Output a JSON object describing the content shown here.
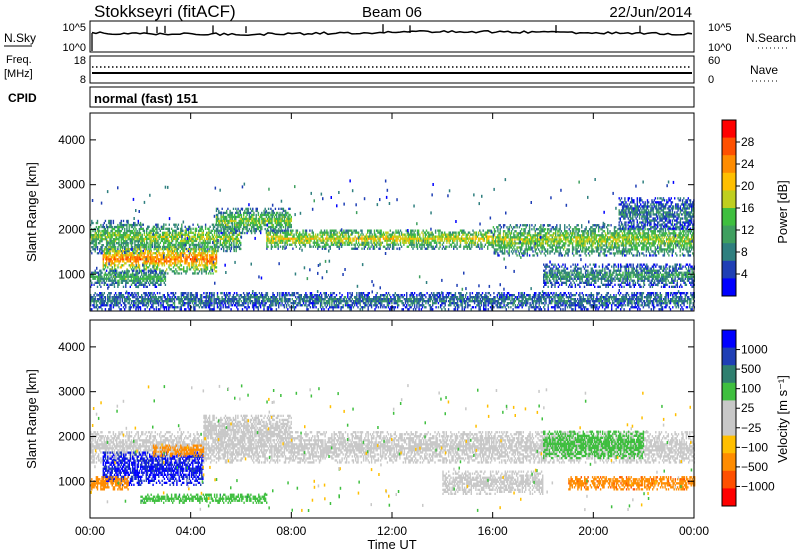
{
  "header": {
    "station": "Stokkseyri (fitACF)",
    "beam": "Beam 06",
    "date": "22/Jun/2014"
  },
  "panels": {
    "nsky": {
      "label": "N.Sky",
      "right_label": "N.Search",
      "ticks": [
        "10^5",
        "10^0"
      ],
      "right_ticks": [
        "10^5",
        "10^0"
      ]
    },
    "freq": {
      "label_top": "Freq.",
      "label_bottom": "[MHz]",
      "ticks": [
        "18",
        "8"
      ],
      "right_label": "Nave",
      "right_ticks": [
        "60",
        "0"
      ]
    },
    "cpid": {
      "label": "CPID",
      "value": "normal (fast) 151"
    }
  },
  "colors": {
    "power": [
      "#0000ff",
      "#1f3fb5",
      "#2f7f7f",
      "#3f9f5f",
      "#3fbf3f",
      "#bfcf1f",
      "#ffbf00",
      "#ff8c00",
      "#ff5000",
      "#ff0000"
    ],
    "velocity": [
      "#0000ff",
      "#1f3fb5",
      "#2f7f6f",
      "#3fbf3f",
      "#c8c8c8",
      "#c8c8c8",
      "#ffbf00",
      "#ff8c00",
      "#ff5000",
      "#ff0000"
    ]
  },
  "chart_data": [
    {
      "type": "heatmap",
      "variable": "power",
      "ylabel": "Slant Range [km]",
      "xlabel": "",
      "x_ticks": [
        "00:00",
        "04:00",
        "08:00",
        "12:00",
        "16:00",
        "20:00",
        "00:00"
      ],
      "x_range_hours": [
        0,
        24
      ],
      "y_ticks": [
        1000,
        2000,
        3000,
        4000
      ],
      "ylim": [
        180,
        4600
      ],
      "colorbar": {
        "label": "Power [dB]",
        "ticks": [
          "4",
          "8",
          "12",
          "16",
          "20",
          "24",
          "28"
        ],
        "range": [
          0,
          30
        ]
      },
      "bands": [
        {
          "t_start": 0.0,
          "t_end": 2.0,
          "r_low": 1450,
          "r_high": 2200,
          "level": 14
        },
        {
          "t_start": 2.0,
          "t_end": 6.0,
          "r_low": 1500,
          "r_high": 2100,
          "level": 16
        },
        {
          "t_start": 5.0,
          "t_end": 8.0,
          "r_low": 1900,
          "r_high": 2450,
          "level": 15
        },
        {
          "t_start": 7.0,
          "t_end": 16.0,
          "r_low": 1550,
          "r_high": 2000,
          "level": 18
        },
        {
          "t_start": 16.0,
          "t_end": 24.0,
          "r_low": 1400,
          "r_high": 2100,
          "level": 16
        },
        {
          "t_start": 0.5,
          "t_end": 5.0,
          "r_low": 1000,
          "r_high": 1650,
          "level": 24
        },
        {
          "t_start": 0.0,
          "t_end": 3.0,
          "r_low": 700,
          "r_high": 1100,
          "level": 12
        },
        {
          "t_start": 0.0,
          "t_end": 24.0,
          "r_low": 200,
          "r_high": 600,
          "level": 8
        },
        {
          "t_start": 21.0,
          "t_end": 24.0,
          "r_low": 2000,
          "r_high": 2700,
          "level": 8
        },
        {
          "t_start": 18.0,
          "t_end": 24.0,
          "r_low": 700,
          "r_high": 1200,
          "level": 10
        }
      ]
    },
    {
      "type": "heatmap",
      "variable": "velocity",
      "ylabel": "Slant Range [km]",
      "xlabel": "Time UT",
      "x_ticks": [
        "00:00",
        "04:00",
        "08:00",
        "12:00",
        "16:00",
        "20:00",
        "00:00"
      ],
      "x_range_hours": [
        0,
        24
      ],
      "y_ticks": [
        1000,
        2000,
        3000,
        4000
      ],
      "ylim": [
        180,
        4600
      ],
      "colorbar": {
        "label": "Velocity [m s⁻¹]",
        "ticks": [
          "1000",
          "500",
          "100",
          "25",
          "−25",
          "−100",
          "−500",
          "−1000"
        ],
        "range": [
          -1250,
          1250
        ]
      },
      "bands": [
        {
          "t_start": 0.0,
          "t_end": 24.0,
          "r_low": 1400,
          "r_high": 2100,
          "level": 0
        },
        {
          "t_start": 4.5,
          "t_end": 8.0,
          "r_low": 1900,
          "r_high": 2450,
          "level": 0
        },
        {
          "t_start": 0.5,
          "t_end": 4.5,
          "r_low": 900,
          "r_high": 1650,
          "level": 800
        },
        {
          "t_start": 2.5,
          "t_end": 4.5,
          "r_low": 1550,
          "r_high": 1800,
          "level": -300
        },
        {
          "t_start": 0.0,
          "t_end": 1.5,
          "r_low": 800,
          "r_high": 1100,
          "level": -200
        },
        {
          "t_start": 19.0,
          "t_end": 24.0,
          "r_low": 800,
          "r_high": 1100,
          "level": -400
        },
        {
          "t_start": 18.0,
          "t_end": 22.0,
          "r_low": 1500,
          "r_high": 2100,
          "level": 60
        },
        {
          "t_start": 2.0,
          "t_end": 7.0,
          "r_low": 500,
          "r_high": 700,
          "level": 70
        },
        {
          "t_start": 14.0,
          "t_end": 18.0,
          "r_low": 700,
          "r_high": 1200,
          "level": 0
        }
      ]
    }
  ]
}
